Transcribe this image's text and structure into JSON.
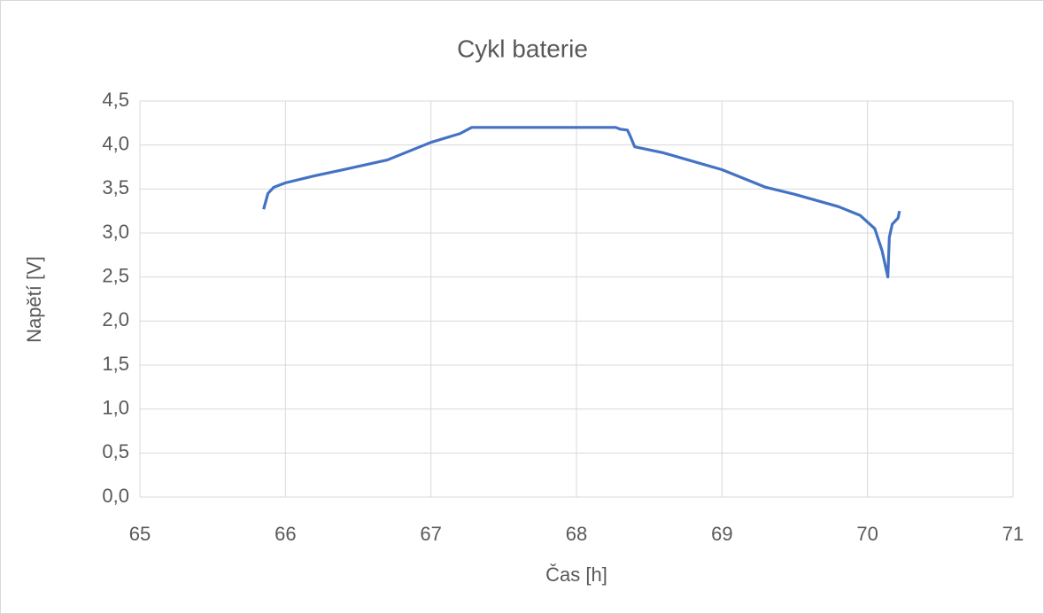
{
  "chart_data": {
    "type": "line",
    "title": "Cykl baterie",
    "xlabel": "Čas [h]",
    "ylabel": "Napětí [V]",
    "x": [
      65.85,
      65.88,
      65.92,
      66.0,
      66.2,
      66.4,
      66.7,
      67.0,
      67.2,
      67.28,
      68.27,
      68.3,
      68.35,
      68.37,
      68.4,
      68.6,
      69.0,
      69.3,
      69.5,
      69.8,
      69.95,
      70.05,
      70.1,
      70.14,
      70.15,
      70.17,
      70.21,
      70.22
    ],
    "series": [
      {
        "name": "Napětí",
        "color": "#4472c4",
        "values": [
          3.27,
          3.45,
          3.52,
          3.57,
          3.65,
          3.72,
          3.83,
          4.03,
          4.13,
          4.2,
          4.2,
          4.18,
          4.17,
          4.1,
          3.98,
          3.91,
          3.72,
          3.52,
          3.44,
          3.3,
          3.2,
          3.05,
          2.8,
          2.5,
          2.95,
          3.1,
          3.17,
          3.25
        ]
      }
    ],
    "xlim": [
      65,
      71
    ],
    "xticks": [
      65,
      66,
      67,
      68,
      69,
      70,
      71
    ],
    "ylim": [
      0,
      4.5
    ],
    "yticks": [
      {
        "value": 0,
        "label": "0,0"
      },
      {
        "value": 0.5,
        "label": "0,5"
      },
      {
        "value": 1,
        "label": "1,0"
      },
      {
        "value": 1.5,
        "label": "1,5"
      },
      {
        "value": 2,
        "label": "2,0"
      },
      {
        "value": 2.5,
        "label": "2,5"
      },
      {
        "value": 3,
        "label": "3,0"
      },
      {
        "value": 3.5,
        "label": "3,5"
      },
      {
        "value": 4,
        "label": "4,0"
      },
      {
        "value": 4.5,
        "label": "4,5"
      }
    ],
    "grid": true
  }
}
